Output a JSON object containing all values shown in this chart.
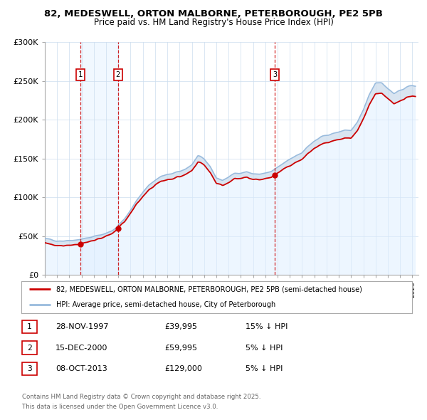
{
  "title_line1": "82, MEDESWELL, ORTON MALBORNE, PETERBOROUGH, PE2 5PB",
  "title_line2": "Price paid vs. HM Land Registry's House Price Index (HPI)",
  "ylim": [
    0,
    300000
  ],
  "xlim_start": 1995.0,
  "xlim_end": 2025.5,
  "yticks": [
    0,
    50000,
    100000,
    150000,
    200000,
    250000,
    300000
  ],
  "ytick_labels": [
    "£0",
    "£50K",
    "£100K",
    "£150K",
    "£200K",
    "£250K",
    "£300K"
  ],
  "sale_dates": [
    1997.91,
    2000.96,
    2013.77
  ],
  "sale_prices": [
    39995,
    59995,
    129000
  ],
  "sale_labels": [
    "1",
    "2",
    "3"
  ],
  "vline_color": "#cc0000",
  "sale_marker_color": "#cc0000",
  "hpi_line_color": "#99bbdd",
  "price_line_color": "#cc0000",
  "legend_label_price": "82, MEDESWELL, ORTON MALBORNE, PETERBOROUGH, PE2 5PB (semi-detached house)",
  "legend_label_hpi": "HPI: Average price, semi-detached house, City of Peterborough",
  "table_rows": [
    [
      "1",
      "28-NOV-1997",
      "£39,995",
      "15% ↓ HPI"
    ],
    [
      "2",
      "15-DEC-2000",
      "£59,995",
      "5% ↓ HPI"
    ],
    [
      "3",
      "08-OCT-2013",
      "£129,000",
      "5% ↓ HPI"
    ]
  ],
  "footnote": "Contains HM Land Registry data © Crown copyright and database right 2025.\nThis data is licensed under the Open Government Licence v3.0.",
  "bg_color": "#ffffff",
  "grid_color": "#ccddee",
  "hpi_fill_color": "#ddeeff",
  "shade_between_color": "#bbccdd"
}
